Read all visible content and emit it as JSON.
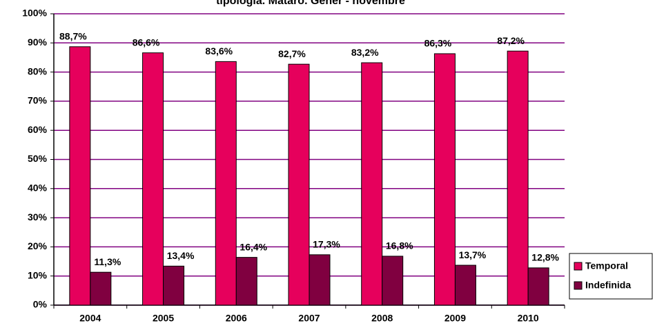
{
  "chart_data": {
    "type": "bar",
    "title": "tipologia. Mataró. Gener - novembre",
    "categories": [
      "2004",
      "2005",
      "2006",
      "2007",
      "2008",
      "2009",
      "2010"
    ],
    "series": [
      {
        "name": "Temporal",
        "color": "#e6005c",
        "values": [
          88.7,
          86.6,
          83.6,
          82.7,
          83.2,
          86.3,
          87.2
        ],
        "value_labels": [
          "88,7%",
          "86,6%",
          "83,6%",
          "82,7%",
          "83,2%",
          "86,3%",
          "87,2%"
        ]
      },
      {
        "name": "Indefinida",
        "color": "#800040",
        "values": [
          11.3,
          13.4,
          16.4,
          17.3,
          16.8,
          13.7,
          12.8
        ],
        "value_labels": [
          "11,3%",
          "13,4%",
          "16,4%",
          "17,3%",
          "16,8%",
          "13,7%",
          "12,8%"
        ]
      }
    ],
    "ylim": [
      0,
      100
    ],
    "yticks": [
      {
        "value": 0,
        "label": "0%"
      },
      {
        "value": 10,
        "label": "10%"
      },
      {
        "value": 20,
        "label": "20%"
      },
      {
        "value": 30,
        "label": "30%"
      },
      {
        "value": 40,
        "label": "40%"
      },
      {
        "value": 50,
        "label": "50%"
      },
      {
        "value": 60,
        "label": "60%"
      },
      {
        "value": 70,
        "label": "70%"
      },
      {
        "value": 80,
        "label": "80%"
      },
      {
        "value": 90,
        "label": "90%"
      },
      {
        "value": 100,
        "label": "100%"
      }
    ],
    "grid": true,
    "legend": "right"
  }
}
